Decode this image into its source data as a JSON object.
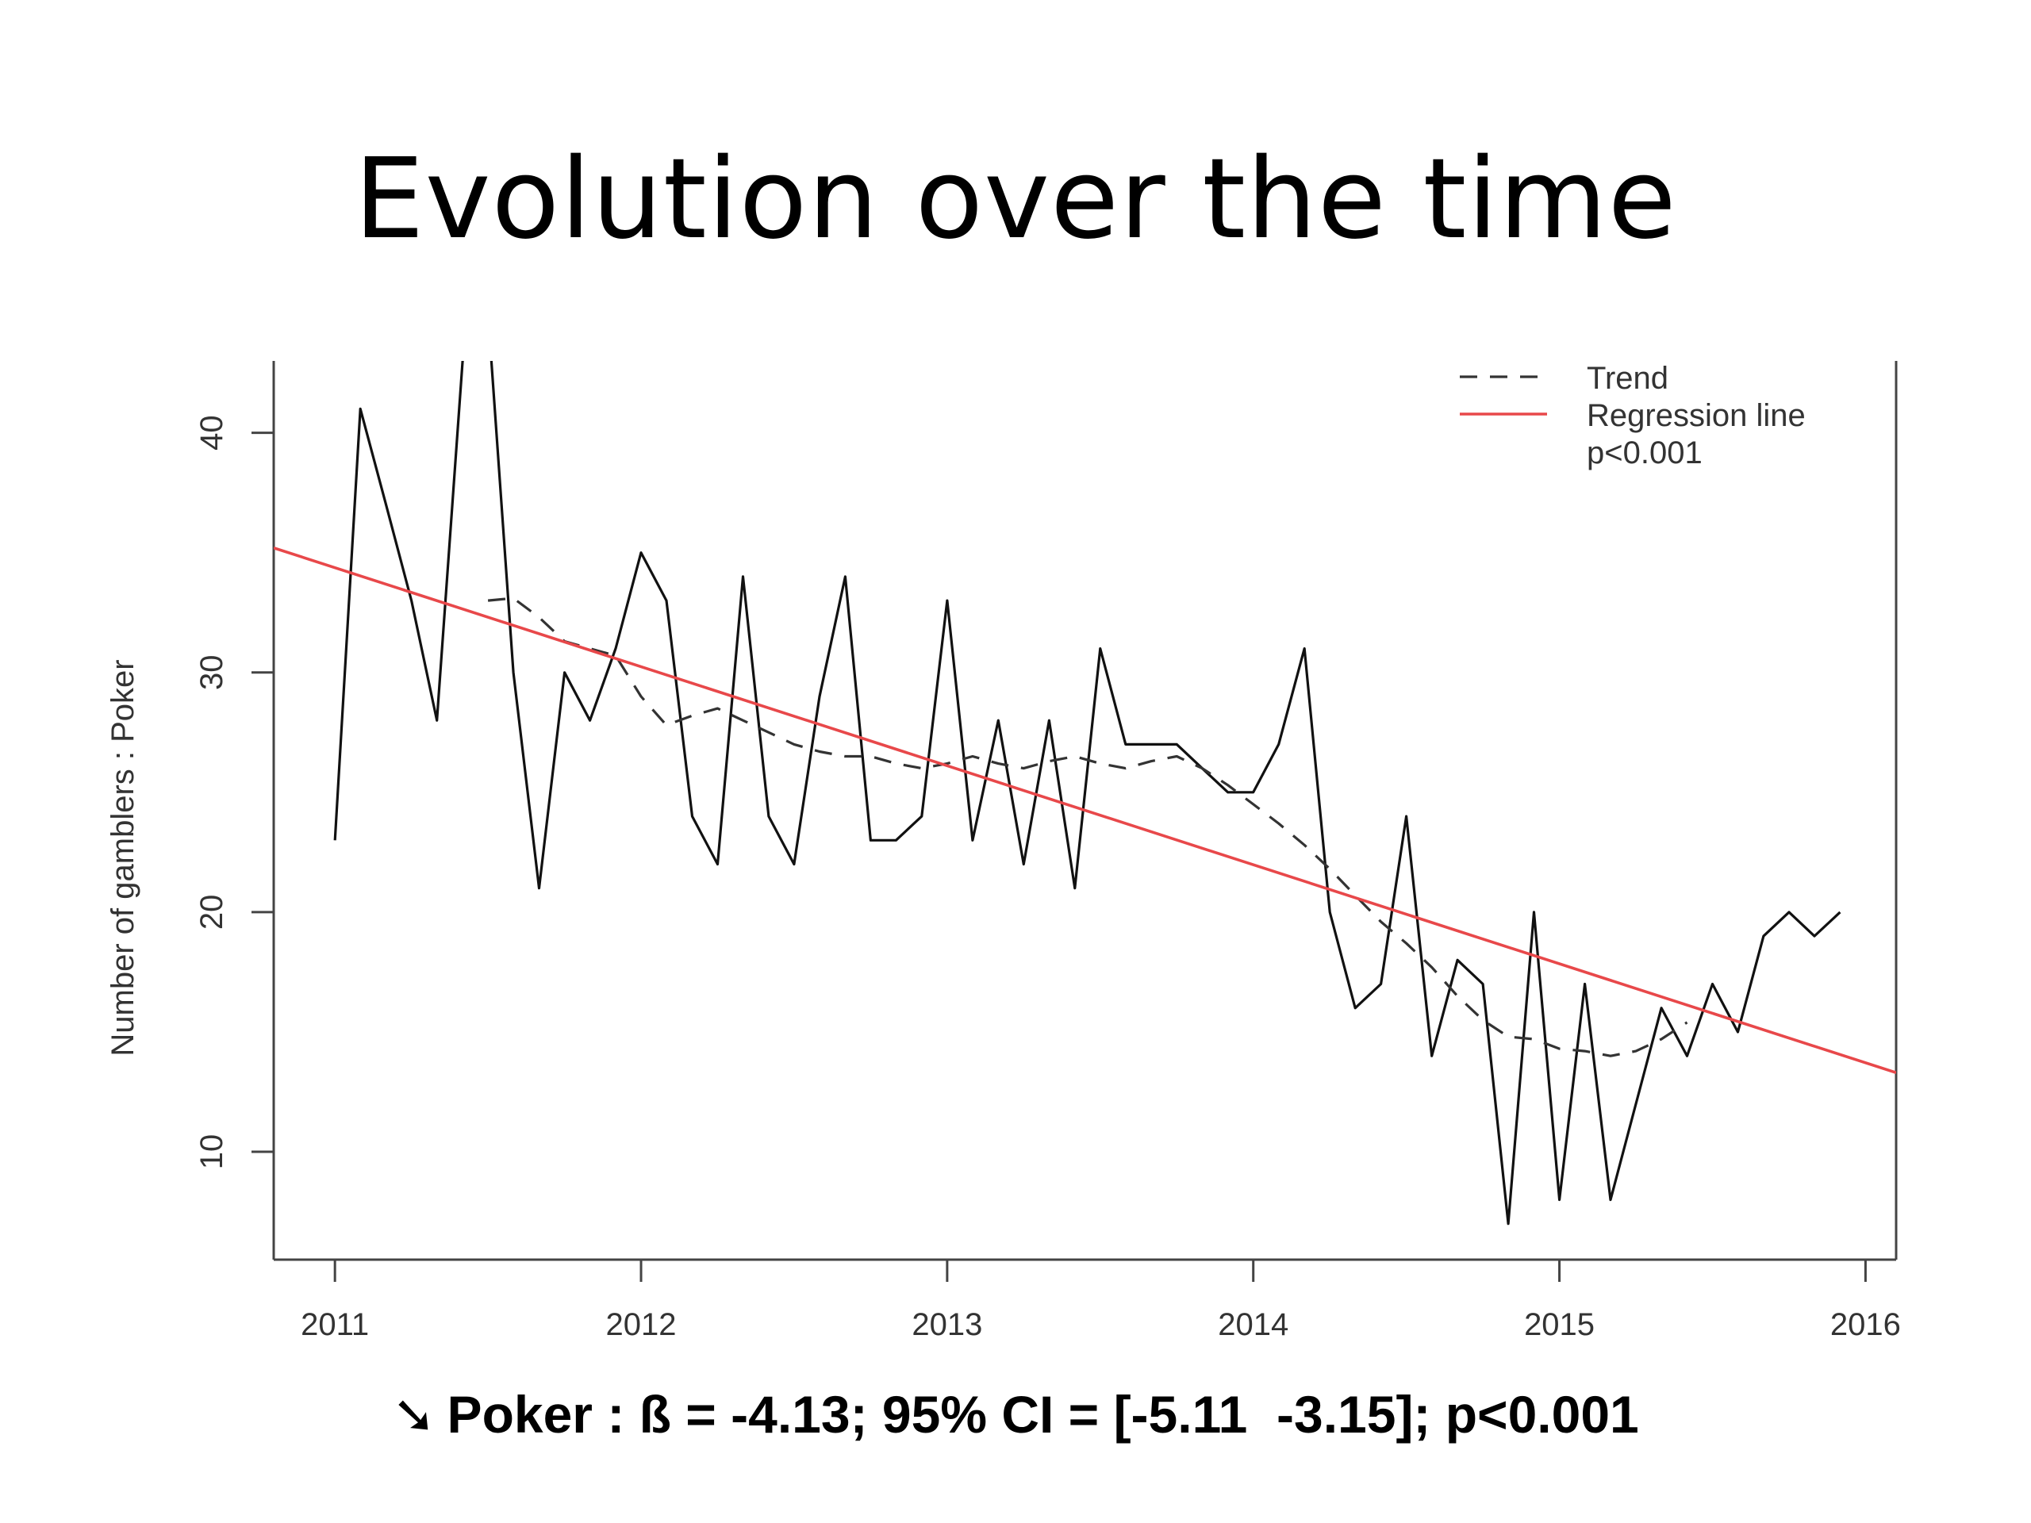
{
  "slide": {
    "title": "Evolution over the time",
    "footer_arrow": "➘",
    "footer_text": "Poker : ß = -4.13; 95% CI = [-5.11  -3.15]; p<0.001"
  },
  "chart_data": {
    "type": "line",
    "title": "",
    "xlabel": "",
    "ylabel": "Number of gamblers : Poker",
    "xlim": [
      2010.8,
      2016.1
    ],
    "ylim": [
      5.5,
      43
    ],
    "x_ticks": [
      2011,
      2012,
      2013,
      2014,
      2015,
      2016
    ],
    "x_tick_labels": [
      "2011",
      "2012",
      "2013",
      "2014",
      "2015",
      "2016"
    ],
    "y_ticks": [
      10,
      20,
      30,
      40
    ],
    "y_tick_labels": [
      "10",
      "20",
      "30",
      "40"
    ],
    "legend_position": "top-right",
    "colors": {
      "observed": "#111111",
      "trend": "#333333",
      "regression": "#e8484a"
    },
    "series": [
      {
        "role": "observed",
        "x": [
          2011.0,
          2011.083,
          2011.167,
          2011.25,
          2011.333,
          2011.417,
          2011.5,
          2011.583,
          2011.667,
          2011.75,
          2011.833,
          2011.917,
          2012.0,
          2012.083,
          2012.167,
          2012.25,
          2012.333,
          2012.417,
          2012.5,
          2012.583,
          2012.667,
          2012.75,
          2012.833,
          2012.917,
          2013.0,
          2013.083,
          2013.167,
          2013.25,
          2013.333,
          2013.417,
          2013.5,
          2013.583,
          2013.667,
          2013.75,
          2013.833,
          2013.917,
          2014.0,
          2014.083,
          2014.167,
          2014.25,
          2014.333,
          2014.417,
          2014.5,
          2014.583,
          2014.667,
          2014.75,
          2014.833,
          2014.917,
          2015.0,
          2015.083,
          2015.167,
          2015.25,
          2015.333,
          2015.417,
          2015.5,
          2015.583,
          2015.667,
          2015.75,
          2015.833,
          2015.917
        ],
        "y": [
          23,
          41,
          37,
          33,
          28,
          43,
          45,
          30,
          21,
          30,
          28,
          31,
          35,
          33,
          24,
          22,
          34,
          24,
          22,
          29,
          34,
          23,
          23,
          24,
          33,
          23,
          28,
          22,
          28,
          21,
          31,
          27,
          27,
          27,
          26,
          25,
          25,
          27,
          31,
          20,
          16,
          17,
          24,
          14,
          18,
          17,
          7,
          20,
          8,
          17,
          8,
          12,
          16,
          14,
          17,
          15,
          19,
          20,
          19,
          20
        ]
      },
      {
        "role": "trend",
        "name": "Trend",
        "x": [
          2011.5,
          2011.583,
          2011.667,
          2011.75,
          2011.833,
          2011.917,
          2012.0,
          2012.083,
          2012.167,
          2012.25,
          2012.333,
          2012.417,
          2012.5,
          2012.583,
          2012.667,
          2012.75,
          2012.833,
          2012.917,
          2013.0,
          2013.083,
          2013.167,
          2013.25,
          2013.333,
          2013.417,
          2013.5,
          2013.583,
          2013.667,
          2013.75,
          2013.833,
          2013.917,
          2014.0,
          2014.083,
          2014.167,
          2014.25,
          2014.333,
          2014.417,
          2014.5,
          2014.583,
          2014.667,
          2014.75,
          2014.833,
          2014.917,
          2015.0,
          2015.083,
          2015.167,
          2015.25,
          2015.333,
          2015.417
        ],
        "y": [
          33.0,
          33.1,
          32.3,
          31.3,
          31.0,
          30.7,
          29.0,
          27.8,
          28.2,
          28.5,
          28.0,
          27.5,
          27.0,
          26.7,
          26.5,
          26.5,
          26.2,
          26.0,
          26.2,
          26.5,
          26.2,
          26.0,
          26.3,
          26.5,
          26.2,
          26.0,
          26.3,
          26.5,
          26.0,
          25.3,
          24.5,
          23.7,
          22.8,
          21.8,
          20.7,
          19.6,
          18.7,
          17.7,
          16.5,
          15.5,
          14.8,
          14.7,
          14.3,
          14.2,
          14.0,
          14.2,
          14.7,
          15.4
        ]
      },
      {
        "role": "regression",
        "name": "Regression line",
        "x": [
          2010.8,
          2016.1
        ],
        "y": [
          35.2,
          13.3
        ]
      }
    ],
    "legend": {
      "entries": [
        "Trend",
        "Regression line"
      ],
      "note": "p<0.001"
    }
  }
}
